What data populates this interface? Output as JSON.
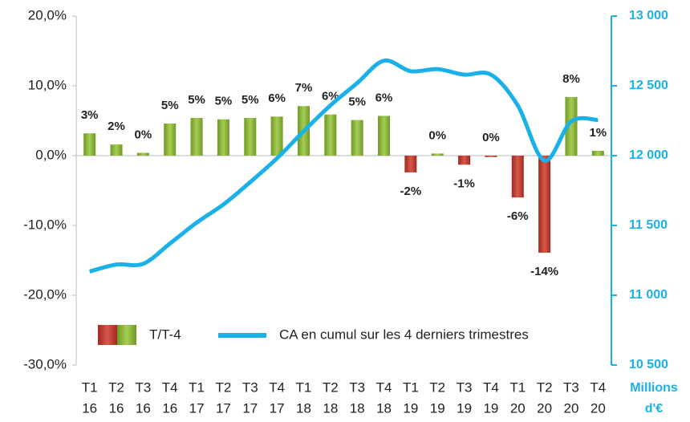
{
  "chart_data": {
    "type": "bar-line",
    "categories": [
      [
        "T1",
        "16"
      ],
      [
        "T2",
        "16"
      ],
      [
        "T3",
        "16"
      ],
      [
        "T4",
        "16"
      ],
      [
        "T1",
        "17"
      ],
      [
        "T2",
        "17"
      ],
      [
        "T3",
        "17"
      ],
      [
        "T4",
        "17"
      ],
      [
        "T1",
        "18"
      ],
      [
        "T2",
        "18"
      ],
      [
        "T3",
        "18"
      ],
      [
        "T4",
        "18"
      ],
      [
        "T1",
        "19"
      ],
      [
        "T2",
        "19"
      ],
      [
        "T3",
        "19"
      ],
      [
        "T4",
        "19"
      ],
      [
        "T1",
        "20"
      ],
      [
        "T2",
        "20"
      ],
      [
        "T3",
        "20"
      ],
      [
        "T4",
        "20"
      ]
    ],
    "series": [
      {
        "name": "T/T-4",
        "color": "#8db33a",
        "negative_color": "#c0392b",
        "values": [
          3.2,
          1.6,
          0.4,
          4.6,
          5.4,
          5.2,
          5.4,
          5.6,
          7.1,
          5.9,
          5.1,
          5.7,
          -2.4,
          0.3,
          -1.3,
          -0.2,
          -6.0,
          -13.9,
          8.4,
          0.7
        ],
        "value_labels": [
          "3%",
          "2%",
          "0%",
          "5%",
          "5%",
          "5%",
          "5%",
          "6%",
          "7%",
          "6%",
          "5%",
          "6%",
          "-2%",
          "0%",
          "-1%",
          "0%",
          "-6%",
          "-14%",
          "8%",
          "1%"
        ]
      },
      {
        "name": "CA en cumul sur les 4 derniers trimestres",
        "color": "#1ab0e8",
        "axis": "y2",
        "values": [
          11170,
          11220,
          11225,
          11370,
          11520,
          11650,
          11810,
          11980,
          12175,
          12360,
          12520,
          12680,
          12605,
          12620,
          12580,
          12580,
          12360,
          11965,
          12245,
          12255
        ]
      }
    ],
    "ylim": [
      -30,
      20
    ],
    "yticks": [
      {
        "value": -30,
        "label": "-30,0%"
      },
      {
        "value": -20,
        "label": "-20,0%"
      },
      {
        "value": -10,
        "label": "-10,0%"
      },
      {
        "value": 0,
        "label": "0,0%"
      },
      {
        "value": 10,
        "label": "10,0%"
      },
      {
        "value": 20,
        "label": "20,0%"
      }
    ],
    "y2lim": [
      10500,
      13000
    ],
    "y2ticks": [
      {
        "value": 10500,
        "label": "10 500"
      },
      {
        "value": 11000,
        "label": "11 000"
      },
      {
        "value": 11500,
        "label": "11 500"
      },
      {
        "value": 12000,
        "label": "12 000"
      },
      {
        "value": 12500,
        "label": "12 500"
      },
      {
        "value": 13000,
        "label": "13 000"
      }
    ],
    "y2_unit": [
      "Millions",
      "d'€"
    ]
  }
}
